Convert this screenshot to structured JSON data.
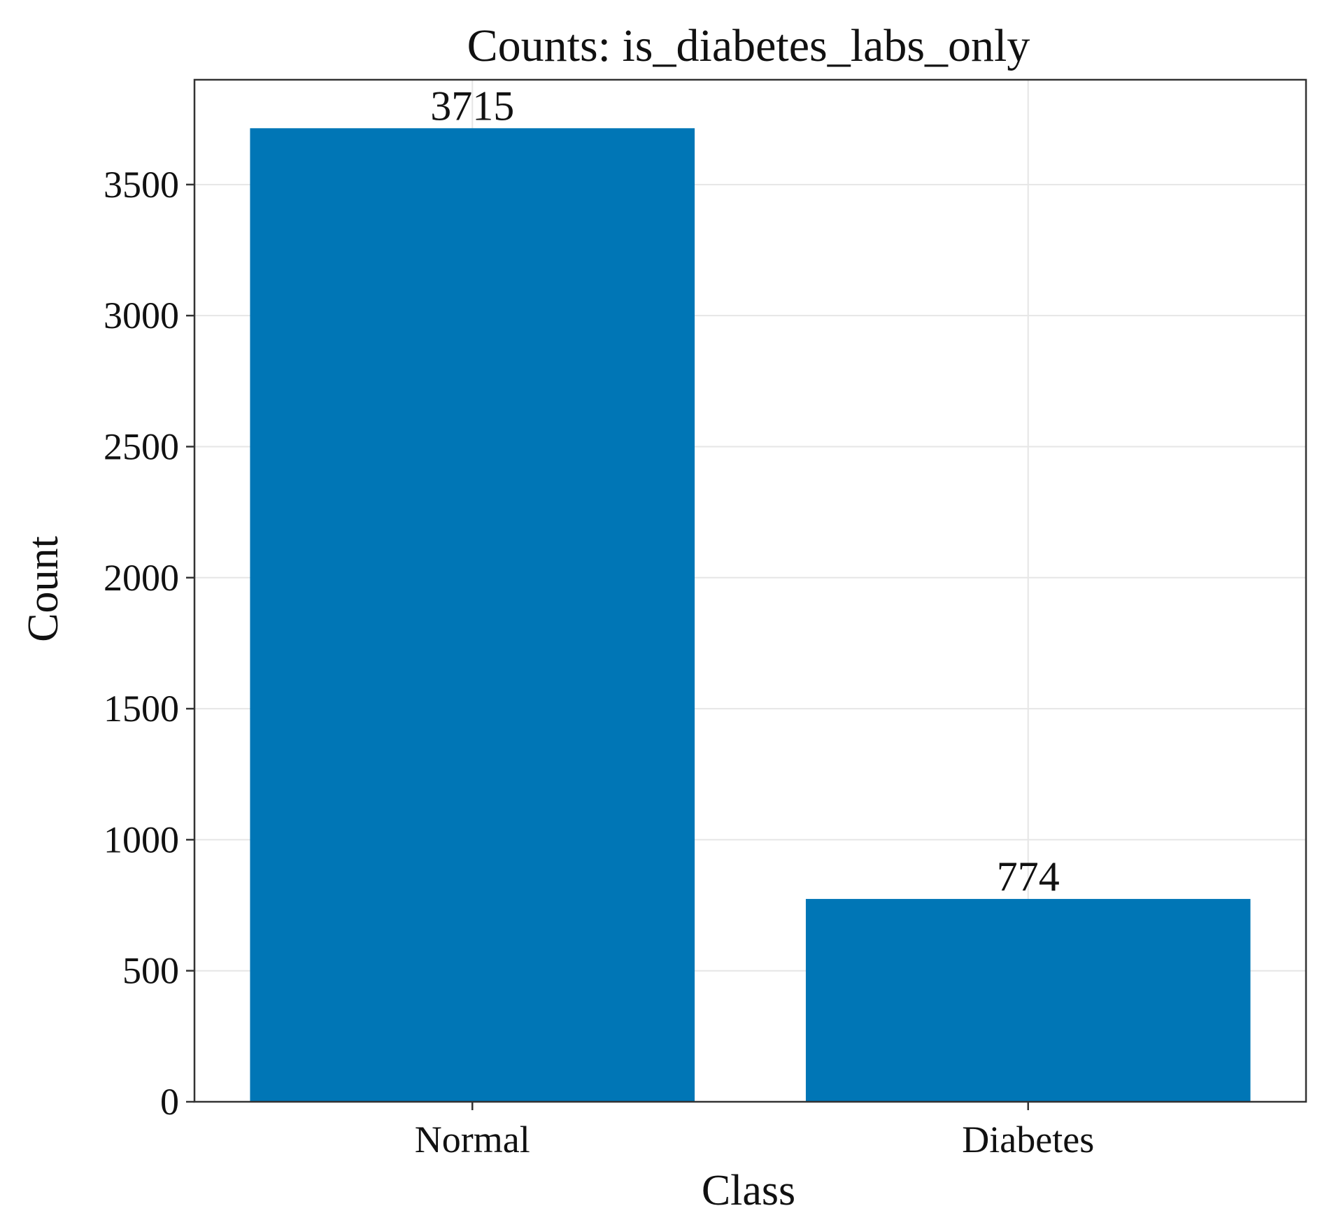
{
  "chart_data": {
    "type": "bar",
    "title": "Counts: is_diabetes_labs_only",
    "xlabel": "Class",
    "ylabel": "Count",
    "categories": [
      "Normal",
      "Diabetes"
    ],
    "values": [
      3715,
      774
    ],
    "data_labels": [
      "3715",
      "774"
    ],
    "yticks": [
      0,
      500,
      1000,
      1500,
      2000,
      2500,
      3000,
      3500
    ],
    "ylim": [
      0,
      3900
    ],
    "grid": true,
    "legend": "none",
    "colors": {
      "bar": "#0076b6",
      "grid": "#e6e6e6",
      "axis": "#333333",
      "text": "#111111"
    }
  }
}
